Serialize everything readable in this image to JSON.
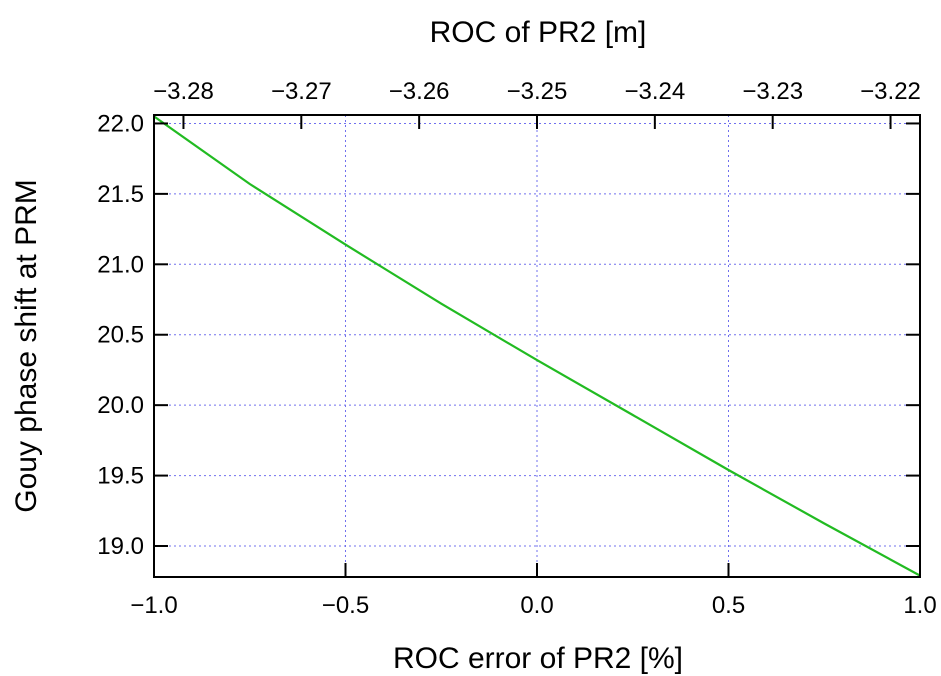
{
  "chart_data": {
    "type": "line",
    "xlabel": "ROC error of PR2 [%]",
    "ylabel": "Gouy phase shift at PRM",
    "x2label": "ROC of PR2 [m]",
    "xlim": [
      -1.0,
      1.0
    ],
    "ylim": [
      18.78,
      22.06
    ],
    "x2lim": [
      -3.2825,
      -3.2175
    ],
    "x_ticks": [
      "-1.0",
      "-0.5",
      "0.0",
      "0.5",
      "1.0"
    ],
    "x_tick_values": [
      -1.0,
      -0.5,
      0.0,
      0.5,
      1.0
    ],
    "y_ticks": [
      "19.0",
      "19.5",
      "20.0",
      "20.5",
      "21.0",
      "21.5",
      "22.0"
    ],
    "y_tick_values": [
      19.0,
      19.5,
      20.0,
      20.5,
      21.0,
      21.5,
      22.0
    ],
    "x2_ticks": [
      "-3.28",
      "-3.27",
      "-3.26",
      "-3.25",
      "-3.24",
      "-3.23",
      "-3.22"
    ],
    "x2_tick_values": [
      -3.28,
      -3.27,
      -3.26,
      -3.25,
      -3.24,
      -3.23,
      -3.22
    ],
    "grid": true,
    "grid_color": "#7070ee",
    "series": [
      {
        "color": "#22bb22",
        "x": [
          -1.0,
          -0.75,
          -0.5,
          -0.25,
          0.0,
          0.25,
          0.5,
          0.75,
          1.0
        ],
        "y": [
          22.05,
          21.57,
          21.14,
          20.72,
          20.32,
          19.93,
          19.54,
          19.16,
          18.79
        ]
      }
    ]
  }
}
